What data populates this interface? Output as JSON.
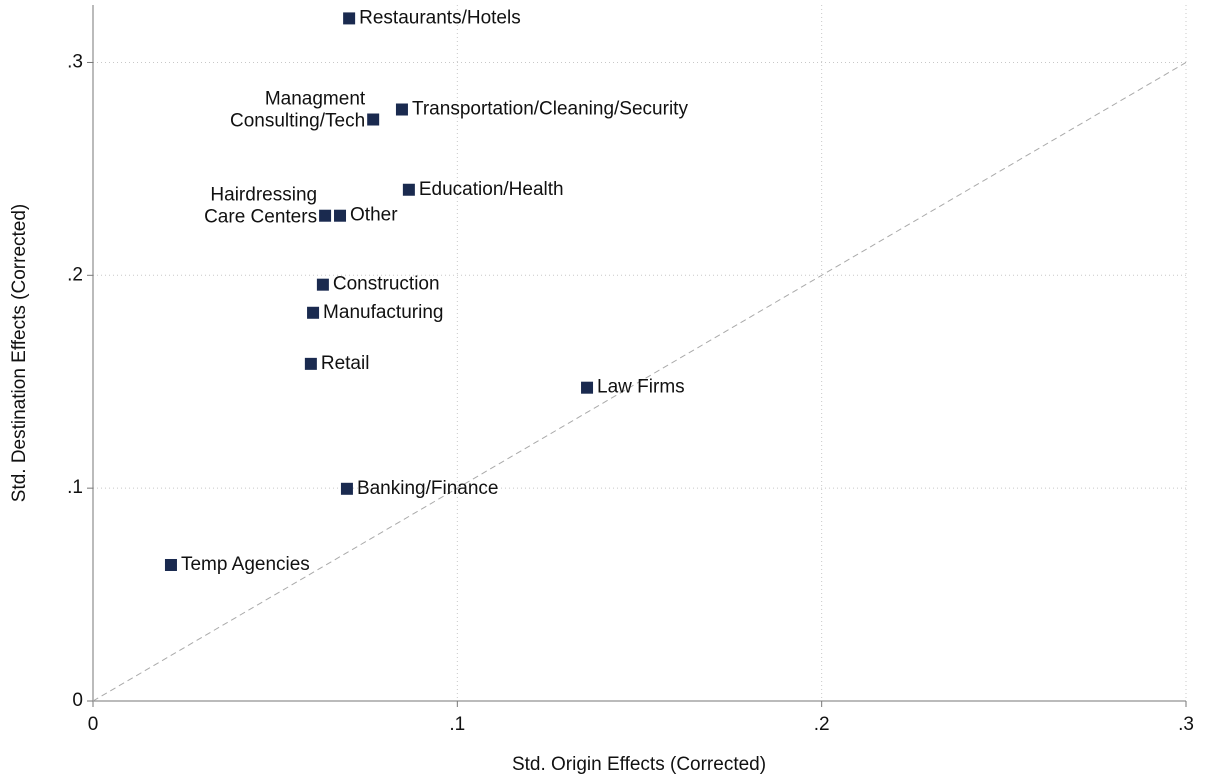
{
  "chart_data": {
    "type": "scatter",
    "xlabel": "Std. Origin Effects (Corrected)",
    "ylabel": "Std. Destination Effects (Corrected)",
    "xlim": [
      0,
      0.3
    ],
    "ylim": [
      0,
      0.327
    ],
    "xticks": [
      0,
      {
        "value": 0.1,
        "label": ".1"
      },
      {
        "value": 0.2,
        "label": ".2"
      },
      {
        "value": 0.3,
        "label": ".3"
      }
    ],
    "yticks": [
      0,
      {
        "value": 0.1,
        "label": ".1"
      },
      {
        "value": 0.2,
        "label": ".2"
      },
      {
        "value": 0.3,
        "label": ".3"
      }
    ],
    "grid": true,
    "diagonal": true,
    "series": [
      {
        "color": "#1a2a4f",
        "x": [
          0.0703,
          0.0848,
          0.0769,
          0.0867,
          0.0637,
          0.0678,
          0.0631,
          0.0604,
          0.0598,
          0.1356,
          0.0697,
          0.0214
        ],
        "values": [
          0.3207,
          0.2779,
          0.2732,
          0.2402,
          0.228,
          0.228,
          0.1956,
          0.1824,
          0.1584,
          0.1472,
          0.0997,
          0.0639
        ],
        "labels": [
          [
            "Restaurants/Hotels"
          ],
          [
            "Transportation/Cleaning/Security"
          ],
          [
            "Managment",
            "Consulting/Tech"
          ],
          [
            "Education/Health"
          ],
          [
            "Hairdressing",
            "Care Centers"
          ],
          [
            "Other"
          ],
          [
            "Construction"
          ],
          [
            "Manufacturing"
          ],
          [
            "Retail"
          ],
          [
            "Law Firms"
          ],
          [
            "Banking/Finance"
          ],
          [
            "Temp Agencies"
          ]
        ],
        "label_sides": [
          "right",
          "right",
          "left",
          "right",
          "left",
          "right",
          "right",
          "right",
          "right",
          "right",
          "right",
          "right"
        ]
      }
    ]
  }
}
